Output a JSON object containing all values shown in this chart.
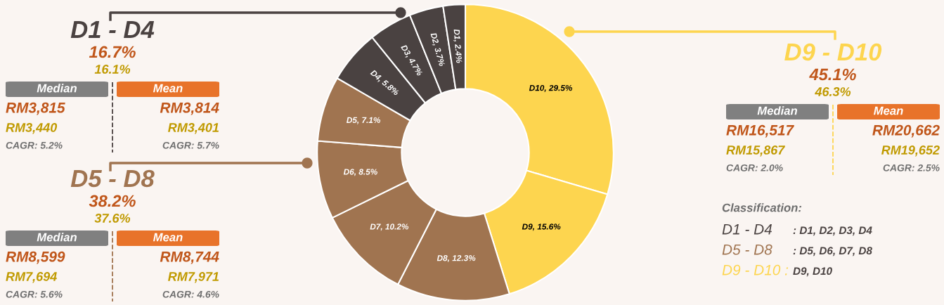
{
  "chart_data": [
    {
      "type": "donut",
      "categories": [
        "D10",
        "D9",
        "D8",
        "D7",
        "D6",
        "D5",
        "D4",
        "D3",
        "D2",
        "D1"
      ],
      "values": [
        29.5,
        15.6,
        12.3,
        10.2,
        8.5,
        7.1,
        5.8,
        4.7,
        3.7,
        2.4
      ],
      "colors": [
        "#fdd54f",
        "#fdd54f",
        "#a07450",
        "#a07450",
        "#a07450",
        "#a07450",
        "#4a4241",
        "#4a4241",
        "#4a4241",
        "#4a4241"
      ],
      "value_labels": [
        "29.5%",
        "15.6%",
        "12.3%",
        "10.2%",
        "8.5%",
        "7.1%",
        "5.8%",
        "4.7%",
        "3.7%",
        "2.4%"
      ]
    },
    {
      "type": "other",
      "title": "D1 - D4",
      "annotations": [
        "16.7%",
        "16.1%",
        "Median",
        "Mean",
        "RM3,815",
        "RM3,814",
        "RM3,440",
        "RM3,401",
        "CAGR: 5.2%",
        "CAGR: 5.7%"
      ]
    },
    {
      "type": "other",
      "title": "D5 - D8",
      "annotations": [
        "38.2%",
        "37.6%",
        "Median",
        "Mean",
        "RM8,599",
        "RM8,744",
        "RM7,694",
        "RM7,971",
        "CAGR: 5.6%",
        "CAGR: 4.6%"
      ]
    },
    {
      "type": "other",
      "title": "D9 - D10",
      "annotations": [
        "45.1%",
        "46.3%",
        "Median",
        "Mean",
        "RM16,517",
        "RM20,662",
        "RM15,867",
        "RM19,652",
        "CAGR: 2.0%",
        "CAGR: 2.5%"
      ]
    },
    {
      "type": "other",
      "title": "Classification:",
      "annotations": [
        "D1 - D4",
        ": D1, D2, D3, D4",
        "D5 - D8",
        ": D5, D6, D7, D8",
        "D9 - D10 :",
        "D9, D10"
      ]
    }
  ]
}
